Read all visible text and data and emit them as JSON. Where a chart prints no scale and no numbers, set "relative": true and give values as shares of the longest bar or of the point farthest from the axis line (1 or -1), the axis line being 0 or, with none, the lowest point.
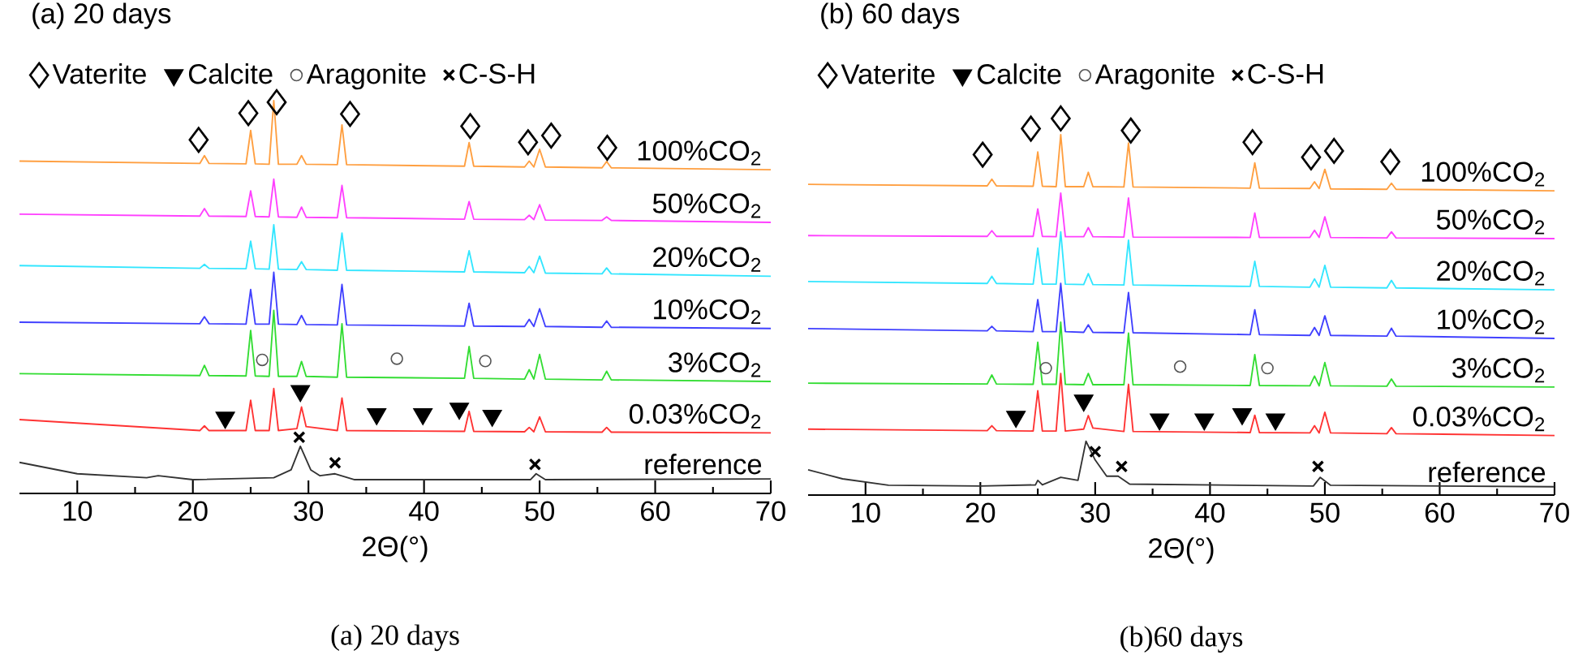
{
  "chart_data": [
    {
      "type": "line",
      "title": "(a) 20 days",
      "xlabel": "2Θ(°)",
      "relative": true,
      "legend": "top left",
      "xlim": [
        5,
        70
      ],
      "xticks": [
        10,
        20,
        30,
        40,
        50,
        60,
        70
      ],
      "annotations": [
        "(a)  20 days"
      ],
      "series": [
        {
          "name": "100%CO$_{2}$",
          "color": "#ff9f40",
          "x": [
            5,
            20.6,
            21,
            21.4,
            24.6,
            25,
            25.4,
            26.6,
            27,
            27.4,
            29,
            29.4,
            29.8,
            32.5,
            32.9,
            33.3,
            43.5,
            43.9,
            44.3,
            48.7,
            49.1,
            49.5,
            50,
            50.5,
            55.4,
            55.8,
            56.2,
            70
          ],
          "values": [
            0.846,
            0.84,
            0.86,
            0.84,
            0.839,
            0.924,
            0.839,
            0.838,
            1.0,
            0.838,
            0.838,
            0.86,
            0.838,
            0.837,
            0.938,
            0.837,
            0.833,
            0.893,
            0.833,
            0.831,
            0.846,
            0.831,
            0.876,
            0.831,
            0.829,
            0.845,
            0.829,
            0.824
          ]
        },
        {
          "name": "50%CO$_{2}$",
          "color": "#ff40ff",
          "x": [
            5,
            20.6,
            21,
            21.4,
            24.6,
            25,
            25.4,
            26.6,
            27,
            27.4,
            29,
            29.4,
            29.8,
            32.5,
            32.9,
            33.3,
            43.5,
            43.9,
            44.3,
            48.7,
            49.1,
            49.5,
            50,
            50.5,
            55.4,
            55.8,
            56.2,
            70
          ],
          "values": [
            0.711,
            0.706,
            0.725,
            0.706,
            0.705,
            0.77,
            0.705,
            0.704,
            0.8,
            0.704,
            0.703,
            0.729,
            0.703,
            0.702,
            0.784,
            0.702,
            0.698,
            0.743,
            0.698,
            0.697,
            0.708,
            0.697,
            0.735,
            0.696,
            0.695,
            0.704,
            0.695,
            0.69
          ]
        },
        {
          "name": "20%CO$_{2}$",
          "color": "#33e6ff",
          "x": [
            5,
            20.6,
            21,
            21.4,
            24.6,
            25,
            25.4,
            26.6,
            27,
            27.4,
            29,
            29.4,
            29.8,
            32.5,
            32.9,
            33.3,
            43.5,
            43.9,
            44.3,
            48.7,
            49.1,
            49.5,
            50,
            50.5,
            55.4,
            55.8,
            56.2,
            70
          ],
          "values": [
            0.58,
            0.573,
            0.583,
            0.573,
            0.572,
            0.642,
            0.572,
            0.571,
            0.684,
            0.571,
            0.57,
            0.59,
            0.57,
            0.568,
            0.663,
            0.568,
            0.564,
            0.618,
            0.564,
            0.562,
            0.578,
            0.562,
            0.604,
            0.561,
            0.559,
            0.574,
            0.559,
            0.553
          ]
        },
        {
          "name": "10%CO$_{2}$",
          "color": "#4040ff",
          "x": [
            5,
            20.6,
            21,
            21.4,
            24.6,
            25,
            25.4,
            26.6,
            27,
            27.4,
            29,
            29.4,
            29.8,
            32.5,
            32.9,
            33.3,
            43.5,
            43.9,
            44.3,
            48.7,
            49.1,
            49.5,
            50,
            50.5,
            55.4,
            55.8,
            56.2,
            70
          ],
          "values": [
            0.436,
            0.432,
            0.45,
            0.432,
            0.431,
            0.519,
            0.431,
            0.431,
            0.563,
            0.431,
            0.43,
            0.453,
            0.43,
            0.429,
            0.532,
            0.429,
            0.426,
            0.484,
            0.426,
            0.425,
            0.443,
            0.425,
            0.47,
            0.425,
            0.423,
            0.439,
            0.423,
            0.42
          ]
        },
        {
          "name": "3%CO$_{2}$",
          "color": "#33dd33",
          "x": [
            5,
            20.6,
            21,
            21.4,
            24.6,
            25,
            25.4,
            26.6,
            27,
            27.4,
            29,
            29.4,
            29.8,
            32.5,
            32.9,
            33.3,
            43.5,
            43.9,
            44.3,
            48.7,
            49.1,
            49.5,
            50,
            50.5,
            55.4,
            55.8,
            56.2,
            70
          ],
          "values": [
            0.305,
            0.3,
            0.326,
            0.3,
            0.299,
            0.415,
            0.299,
            0.298,
            0.466,
            0.298,
            0.298,
            0.336,
            0.298,
            0.296,
            0.432,
            0.296,
            0.293,
            0.374,
            0.293,
            0.291,
            0.315,
            0.291,
            0.354,
            0.291,
            0.289,
            0.311,
            0.289,
            0.285
          ]
        },
        {
          "name": "0.03%CO$_{2}$",
          "color": "#ff3333",
          "x": [
            5,
            20.6,
            21,
            21.4,
            24.6,
            25,
            25.4,
            26.6,
            27,
            27.4,
            29,
            29.4,
            29.8,
            32.5,
            32.9,
            33.3,
            43.5,
            43.9,
            44.3,
            48.7,
            49.1,
            49.5,
            50,
            50.5,
            55.4,
            55.8,
            56.2,
            70
          ],
          "values": [
            0.188,
            0.16,
            0.172,
            0.16,
            0.16,
            0.237,
            0.16,
            0.16,
            0.267,
            0.16,
            0.165,
            0.22,
            0.17,
            0.16,
            0.243,
            0.16,
            0.158,
            0.209,
            0.158,
            0.157,
            0.168,
            0.157,
            0.195,
            0.157,
            0.156,
            0.168,
            0.156,
            0.154
          ]
        },
        {
          "name": "reference",
          "color": "#333333",
          "x": [
            5,
            10,
            16,
            17,
            20,
            27,
            28.5,
            29.3,
            30.2,
            31,
            32.3,
            34,
            45,
            49.2,
            49.7,
            50.5,
            70
          ],
          "values": [
            0.079,
            0.05,
            0.04,
            0.045,
            0.035,
            0.04,
            0.06,
            0.12,
            0.06,
            0.045,
            0.05,
            0.035,
            0.035,
            0.035,
            0.05,
            0.035,
            0.037
          ]
        },
        {
          "name": "Vaterite",
          "type": "scatter",
          "marker": "diamond",
          "color": "#000000",
          "x": [
            20.5,
            24.8,
            27.25,
            33.6,
            44.0,
            49.0,
            51.0,
            55.85
          ],
          "values": [
            0.9,
            0.968,
            0.996,
            0.966,
            0.935,
            0.894,
            0.911,
            0.88
          ]
        },
        {
          "name": "Calcite",
          "type": "scatter",
          "marker": "triangle",
          "color": "#000000",
          "x": [
            22.8,
            29.3,
            35.9,
            39.9,
            43.05,
            45.9
          ],
          "values": [
            0.193,
            0.261,
            0.202,
            0.202,
            0.216,
            0.198
          ]
        },
        {
          "name": "Aragonite",
          "type": "scatter",
          "marker": "circle",
          "color": "#555555",
          "x": [
            26.0,
            37.65,
            45.3
          ],
          "values": [
            0.34,
            0.343,
            0.337
          ]
        },
        {
          "name": "C-S-H",
          "type": "scatter",
          "marker": "cross",
          "color": "#000000",
          "x": [
            29.2,
            32.3,
            49.6
          ],
          "values": [
            0.143,
            0.078,
            0.074
          ]
        }
      ]
    },
    {
      "type": "line",
      "title": "(b) 60 days",
      "xlabel": "2Θ(°)",
      "relative": true,
      "legend": "top left",
      "xlim": [
        5,
        70
      ],
      "xticks": [
        10,
        20,
        30,
        40,
        50,
        60,
        70
      ],
      "annotations": [
        "(b)60 days"
      ],
      "series": [
        {
          "name": "100%CO$_{2}$",
          "color": "#ff9f40",
          "x": [
            5,
            20.6,
            21,
            21.4,
            24.6,
            25,
            25.4,
            26.6,
            27,
            27.4,
            29,
            29.4,
            29.8,
            32.5,
            32.9,
            33.3,
            43.5,
            43.9,
            44.3,
            48.7,
            49.1,
            49.5,
            50,
            50.5,
            55.4,
            55.8,
            56.2,
            70
          ],
          "values": [
            0.825,
            0.821,
            0.839,
            0.821,
            0.82,
            0.911,
            0.82,
            0.819,
            0.957,
            0.819,
            0.819,
            0.857,
            0.819,
            0.818,
            0.935,
            0.818,
            0.815,
            0.882,
            0.815,
            0.814,
            0.832,
            0.814,
            0.865,
            0.813,
            0.812,
            0.828,
            0.812,
            0.808
          ]
        },
        {
          "name": "50%CO$_{2}$",
          "color": "#ff40ff",
          "x": [
            5,
            20.6,
            21,
            21.4,
            24.6,
            25,
            25.4,
            26.6,
            27,
            27.4,
            29,
            29.4,
            29.8,
            32.5,
            32.9,
            33.3,
            43.5,
            43.9,
            44.3,
            48.7,
            49.1,
            49.5,
            50,
            50.5,
            55.4,
            55.8,
            56.2,
            70
          ],
          "values": [
            0.689,
            0.687,
            0.702,
            0.687,
            0.687,
            0.76,
            0.687,
            0.686,
            0.802,
            0.686,
            0.686,
            0.71,
            0.686,
            0.685,
            0.789,
            0.685,
            0.684,
            0.749,
            0.684,
            0.684,
            0.703,
            0.684,
            0.739,
            0.684,
            0.683,
            0.699,
            0.683,
            0.681
          ]
        },
        {
          "name": "20%CO$_{2}$",
          "color": "#33e6ff",
          "x": [
            5,
            20.6,
            21,
            21.4,
            24.6,
            25,
            25.4,
            26.6,
            27,
            27.4,
            29,
            29.4,
            29.8,
            32.5,
            32.9,
            33.3,
            43.5,
            43.9,
            44.3,
            48.7,
            49.1,
            49.5,
            50,
            50.5,
            55.4,
            55.8,
            56.2,
            70
          ],
          "values": [
            0.567,
            0.562,
            0.581,
            0.562,
            0.56,
            0.656,
            0.56,
            0.56,
            0.699,
            0.56,
            0.559,
            0.588,
            0.559,
            0.558,
            0.677,
            0.558,
            0.554,
            0.621,
            0.554,
            0.552,
            0.574,
            0.552,
            0.61,
            0.552,
            0.55,
            0.57,
            0.55,
            0.545
          ]
        },
        {
          "name": "10%CO$_{2}$",
          "color": "#4040ff",
          "x": [
            5,
            20.6,
            21,
            21.4,
            24.6,
            25,
            25.4,
            26.6,
            27,
            27.4,
            29,
            29.4,
            29.8,
            32.5,
            32.9,
            33.3,
            43.5,
            43.9,
            44.3,
            48.7,
            49.1,
            49.5,
            50,
            50.5,
            55.4,
            55.8,
            56.2,
            70
          ],
          "values": [
            0.442,
            0.436,
            0.448,
            0.436,
            0.434,
            0.519,
            0.434,
            0.434,
            0.562,
            0.434,
            0.432,
            0.452,
            0.432,
            0.431,
            0.538,
            0.431,
            0.426,
            0.492,
            0.426,
            0.424,
            0.445,
            0.424,
            0.476,
            0.424,
            0.422,
            0.443,
            0.422,
            0.416
          ]
        },
        {
          "name": "3%CO$_{2}$",
          "color": "#33dd33",
          "x": [
            5,
            20.6,
            21,
            21.4,
            24.6,
            25,
            25.4,
            26.6,
            27,
            27.4,
            29,
            29.4,
            29.8,
            32.5,
            32.9,
            33.3,
            43.5,
            43.9,
            44.3,
            48.7,
            49.1,
            49.5,
            50,
            50.5,
            55.4,
            55.8,
            56.2,
            70
          ],
          "values": [
            0.297,
            0.295,
            0.319,
            0.295,
            0.294,
            0.406,
            0.294,
            0.294,
            0.459,
            0.294,
            0.293,
            0.323,
            0.293,
            0.293,
            0.43,
            0.293,
            0.291,
            0.373,
            0.291,
            0.29,
            0.316,
            0.29,
            0.352,
            0.29,
            0.289,
            0.308,
            0.289,
            0.287
          ]
        },
        {
          "name": "0.03%CO$_{2}$",
          "color": "#ff3333",
          "x": [
            5,
            20.6,
            21,
            21.4,
            24.6,
            25,
            25.4,
            26.6,
            27,
            27.4,
            29,
            29.4,
            29.8,
            32.5,
            32.9,
            33.3,
            43.5,
            43.9,
            44.3,
            48.7,
            49.1,
            49.5,
            50,
            50.5,
            55.4,
            55.8,
            56.2,
            70
          ],
          "values": [
            0.175,
            0.171,
            0.184,
            0.171,
            0.17,
            0.277,
            0.17,
            0.17,
            0.323,
            0.17,
            0.175,
            0.211,
            0.178,
            0.169,
            0.294,
            0.169,
            0.166,
            0.212,
            0.166,
            0.165,
            0.184,
            0.165,
            0.22,
            0.165,
            0.163,
            0.179,
            0.163,
            0.158
          ]
        },
        {
          "name": "reference",
          "color": "#333333",
          "x": [
            5,
            8,
            12,
            20,
            24.8,
            25,
            25.4,
            27,
            28.5,
            29.2,
            30,
            31,
            32,
            33,
            49,
            49.6,
            50.5,
            70
          ],
          "values": [
            0.067,
            0.043,
            0.026,
            0.024,
            0.027,
            0.039,
            0.027,
            0.047,
            0.039,
            0.143,
            0.093,
            0.05,
            0.05,
            0.029,
            0.024,
            0.047,
            0.026,
            0.022
          ]
        },
        {
          "name": "Vaterite",
          "type": "scatter",
          "marker": "diamond",
          "color": "#000000",
          "x": [
            20.2,
            24.4,
            27.0,
            33.1,
            43.7,
            48.8,
            50.8,
            55.7
          ],
          "values": [
            0.904,
            0.973,
            1.0,
            0.968,
            0.937,
            0.897,
            0.914,
            0.885
          ]
        },
        {
          "name": "Calcite",
          "type": "scatter",
          "marker": "triangle",
          "color": "#000000",
          "x": [
            23.1,
            29.0,
            35.6,
            39.5,
            42.8,
            45.7
          ],
          "values": [
            0.208,
            0.251,
            0.201,
            0.201,
            0.215,
            0.201
          ]
        },
        {
          "name": "Aragonite",
          "type": "scatter",
          "marker": "circle",
          "color": "#555555",
          "x": [
            25.7,
            37.4,
            45.0
          ],
          "values": [
            0.337,
            0.341,
            0.337
          ]
        },
        {
          "name": "C-S-H",
          "type": "scatter",
          "marker": "cross",
          "color": "#000000",
          "x": [
            30.0,
            32.3,
            49.4
          ],
          "values": [
            0.115,
            0.076,
            0.076
          ]
        }
      ]
    }
  ]
}
